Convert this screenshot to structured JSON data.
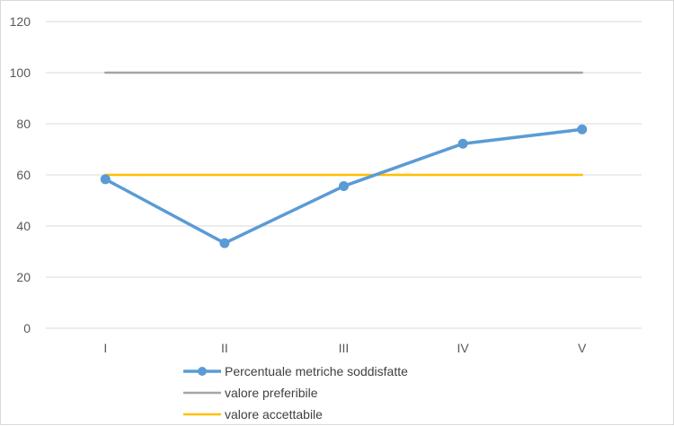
{
  "chart_data": {
    "type": "line",
    "categories": [
      "I",
      "II",
      "III",
      "IV",
      "V"
    ],
    "ylim": [
      0,
      120
    ],
    "yticks": [
      0,
      20,
      40,
      60,
      80,
      100,
      120
    ],
    "grid": true,
    "legend_position": "bottom",
    "series": [
      {
        "name": "Percentuale metriche soddisfatte",
        "values": [
          58.3,
          33.3,
          55.6,
          72.2,
          77.8
        ],
        "color": "#5B9BD5",
        "markers": true
      },
      {
        "name": "valore preferibile",
        "values": [
          100,
          100,
          100,
          100,
          100
        ],
        "color": "#A5A5A5",
        "markers": false
      },
      {
        "name": "valore accettabile",
        "values": [
          60,
          60,
          60,
          60,
          60
        ],
        "color": "#FFC000",
        "markers": false
      }
    ]
  }
}
